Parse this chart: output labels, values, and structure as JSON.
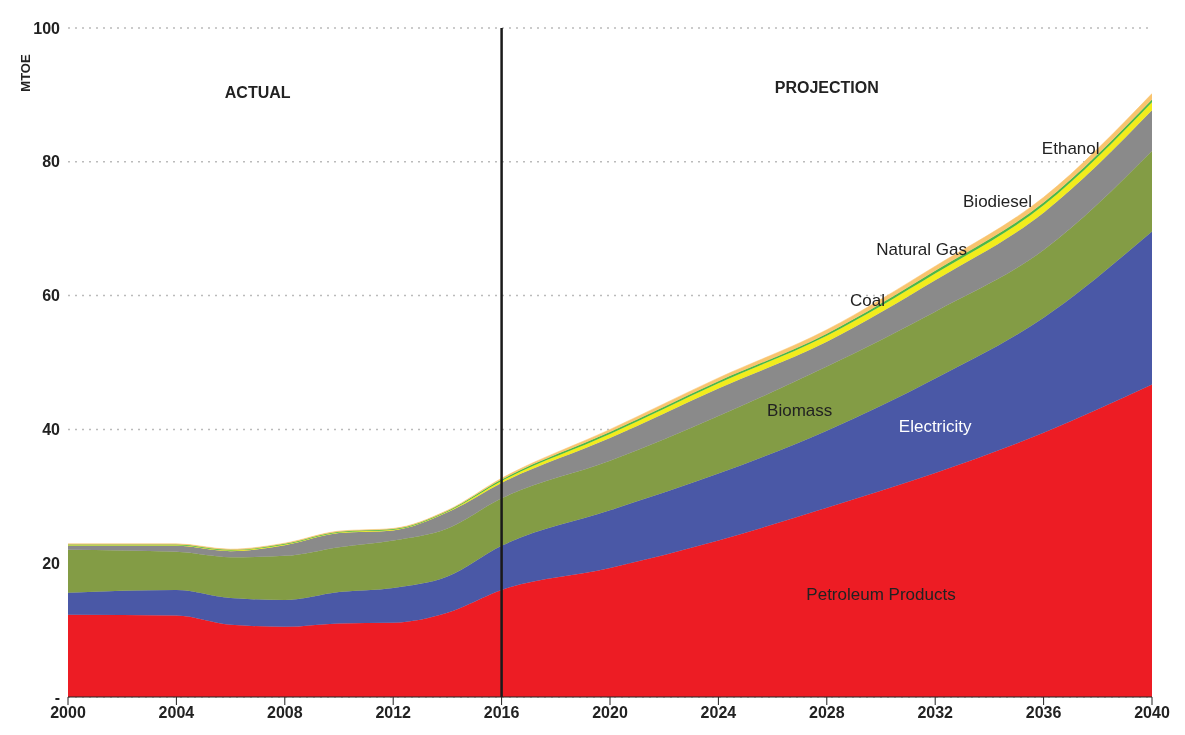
{
  "chart_data": {
    "type": "area",
    "stacked": true,
    "ylabel": "MTOE",
    "x": [
      2000,
      2004,
      2006,
      2008,
      2010,
      2012,
      2014,
      2016,
      2020,
      2024,
      2028,
      2032,
      2036,
      2040
    ],
    "xlim": [
      2000,
      2040
    ],
    "xticks": [
      2000,
      2004,
      2008,
      2012,
      2016,
      2020,
      2024,
      2028,
      2032,
      2036,
      2040
    ],
    "ylim": [
      0,
      100
    ],
    "yticks": [
      {
        "value": 0,
        "label": "-"
      },
      20,
      40,
      60,
      80,
      100
    ],
    "grid": "y",
    "legend": false,
    "series": [
      {
        "name": "Petroleum Products",
        "color": "#ed1c24",
        "values": [
          12.3,
          12.2,
          10.8,
          10.5,
          11.0,
          11.1,
          12.6,
          16.0,
          19.3,
          23.4,
          28.3,
          33.5,
          39.5,
          46.7
        ]
      },
      {
        "name": "Electricity",
        "color": "#4a58a6",
        "values": [
          3.3,
          3.8,
          4.0,
          4.0,
          4.7,
          5.2,
          5.4,
          6.6,
          8.6,
          10.0,
          11.5,
          14.1,
          17.2,
          22.9
        ]
      },
      {
        "name": "Biomass",
        "color": "#839c45",
        "values": [
          6.4,
          5.7,
          6.1,
          6.6,
          6.7,
          7.1,
          7.2,
          7.1,
          7.4,
          8.6,
          9.6,
          10.0,
          10.1,
          12.0
        ]
      },
      {
        "name": "Coal",
        "color": "#8a8a8a",
        "values": [
          0.6,
          0.9,
          0.9,
          1.6,
          2.1,
          1.5,
          2.4,
          2.3,
          3.4,
          4.1,
          3.7,
          4.7,
          5.6,
          6.1
        ]
      },
      {
        "name": "Natural Gas",
        "color": "#f2ec1c",
        "values": [
          0.1,
          0.1,
          0.1,
          0.1,
          0.1,
          0.1,
          0.1,
          0.3,
          0.6,
          0.8,
          0.9,
          1.0,
          1.1,
          1.2
        ]
      },
      {
        "name": "Biodiesel",
        "color": "#4cb848",
        "values": [
          0.1,
          0.1,
          0.1,
          0.1,
          0.1,
          0.1,
          0.1,
          0.2,
          0.3,
          0.3,
          0.3,
          0.4,
          0.4,
          0.4
        ]
      },
      {
        "name": "Ethanol",
        "color": "#f9c46e",
        "values": [
          0.1,
          0.1,
          0.1,
          0.1,
          0.1,
          0.1,
          0.1,
          0.2,
          0.4,
          0.5,
          0.6,
          0.7,
          0.8,
          0.9
        ]
      }
    ],
    "ref_lines": [
      {
        "axis": "x",
        "value": 2016,
        "color": "#1a1a1a"
      }
    ],
    "annotations": [
      "ACTUAL",
      "PROJECTION"
    ]
  }
}
